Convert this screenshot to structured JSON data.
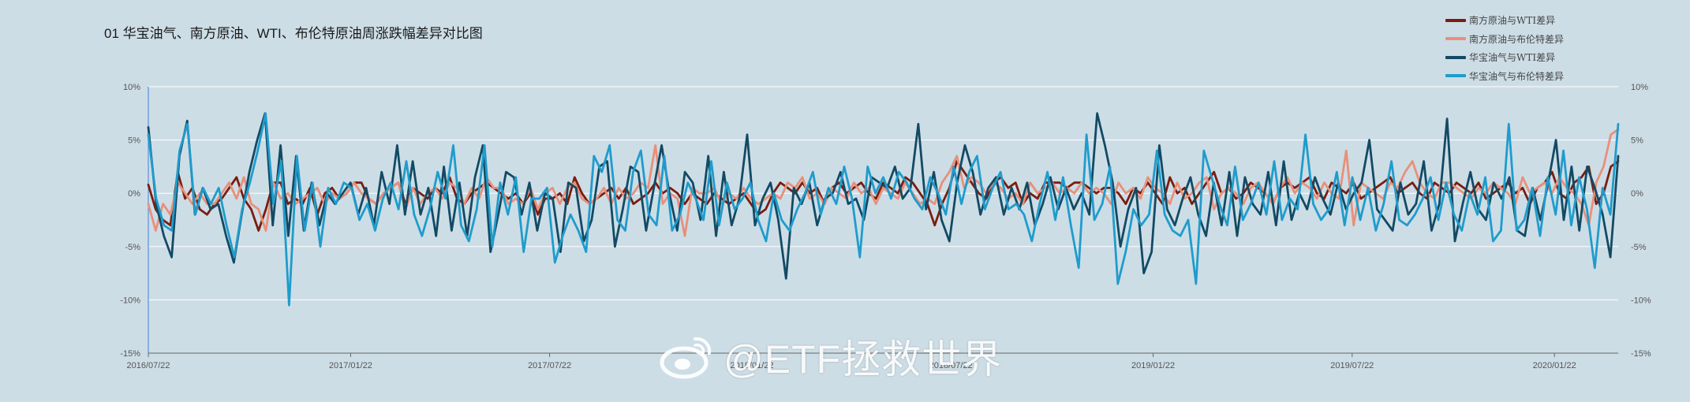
{
  "chart_data": {
    "type": "line",
    "title": "01 华宝油气、南方原油、WTI、布伦特原油周涨跌幅差异对比图",
    "x_start": "2016/07/22",
    "x_end": "2020/03/20",
    "x_ticks": [
      "2016/07/22",
      "2017/01/22",
      "2017/07/22",
      "2018/01/22",
      "2018/07/22",
      "2019/01/22",
      "2019/07/22",
      "2020/01/22"
    ],
    "ylim": [
      -15,
      10
    ],
    "y_ticks": [
      10,
      5,
      0,
      -5,
      -10,
      -15
    ],
    "y_tick_labels": [
      "10%",
      "5%",
      "0%",
      "-5%",
      "-10%",
      "-15%"
    ],
    "y_tick_labels_right": [
      "10%",
      "5%",
      "0%",
      "-5%",
      "-10%",
      "-15%"
    ],
    "grid": true,
    "legend_position": "top-right",
    "series": [
      {
        "name": "南方原油与WTI差异",
        "color": "#7a1d10",
        "x_start": "2016/07/22",
        "x_end": "2020/03/20",
        "values": [
          0.8,
          -1.5,
          -2.5,
          -3.0,
          2.0,
          -0.5,
          0.5,
          -1.5,
          -2.0,
          -1.0,
          -0.5,
          0.5,
          1.5,
          -0.5,
          -1.5,
          -3.5,
          -1.5,
          1.0,
          1.0,
          -1.0,
          -0.5,
          -1.0,
          0.5,
          -2.0,
          0.0,
          0.5,
          -0.5,
          0.0,
          1.0,
          1.0,
          -0.5,
          -1.0,
          0.0,
          0.5,
          1.0,
          -1.0,
          0.5,
          0.0,
          -0.5,
          0.5,
          0.0,
          1.5,
          -0.5,
          -1.0,
          0.0,
          0.5,
          1.0,
          0.5,
          0.0,
          -0.5,
          0.0,
          -1.0,
          0.0,
          -2.0,
          -0.5,
          -0.5,
          0.0,
          -1.0,
          1.5,
          0.0,
          -1.0,
          -0.5,
          0.0,
          0.5,
          -0.5,
          0.5,
          -1.0,
          -0.5,
          0.0,
          1.0,
          0.0,
          0.5,
          0.0,
          -1.0,
          0.0,
          -0.5,
          -1.0,
          0.0,
          -0.5,
          -1.0,
          -0.5,
          0.0,
          -1.0,
          -2.0,
          -1.5,
          0.0,
          1.0,
          0.5,
          0.0,
          1.0,
          0.0,
          0.5,
          -1.0,
          0.5,
          1.0,
          0.0,
          0.5,
          1.0,
          0.0,
          -0.5,
          1.0,
          0.5,
          0.0,
          1.5,
          1.0,
          0.0,
          -1.0,
          -3.0,
          -1.0,
          0.5,
          3.0,
          2.0,
          1.0,
          0.0,
          -0.5,
          1.0,
          1.5,
          0.5,
          1.0,
          -1.0,
          0.0,
          -0.5,
          1.0,
          1.0,
          1.0,
          0.5,
          1.0,
          1.0,
          0.5,
          0.0,
          0.5,
          0.5,
          0.0,
          -1.0,
          0.5,
          0.0,
          1.0,
          0.0,
          -1.0,
          1.5,
          0.0,
          0.5,
          -1.0,
          0.0,
          1.0,
          2.0,
          0.0,
          0.5,
          -0.5,
          0.0,
          1.0,
          0.5,
          0.0,
          -1.0,
          0.5,
          1.0,
          0.5,
          1.0,
          1.5,
          0.0,
          -0.5,
          1.0,
          0.5,
          0.0,
          1.0,
          -0.5,
          0.0,
          0.5,
          1.0,
          1.5,
          0.0,
          0.5,
          1.0,
          0.0,
          -0.5,
          1.0,
          0.5,
          0.0,
          1.0,
          0.5,
          0.0,
          1.0,
          -0.5,
          0.0,
          0.5,
          1.0,
          0.0,
          0.5,
          -1.0,
          0.5,
          1.0,
          2.0,
          0.0,
          -0.5,
          1.0,
          1.5,
          2.5,
          -1.0,
          0.0,
          2.5,
          3.0
        ]
      },
      {
        "name": "南方原油与布伦特差异",
        "color": "#e8907a",
        "x_start": "2016/07/22",
        "x_end": "2020/03/20",
        "values": [
          -1.0,
          -3.5,
          -1.0,
          -2.0,
          1.0,
          0.0,
          -1.0,
          0.0,
          -1.0,
          -1.0,
          0.0,
          1.0,
          -0.5,
          1.5,
          -1.0,
          -1.5,
          -3.5,
          1.0,
          -0.5,
          0.0,
          -1.0,
          -0.5,
          0.0,
          0.5,
          -1.0,
          0.0,
          -0.5,
          0.0,
          1.0,
          0.0,
          -0.5,
          -1.0,
          0.0,
          0.5,
          1.0,
          -1.5,
          0.5,
          -1.0,
          0.0,
          0.5,
          -0.5,
          1.0,
          0.5,
          -1.0,
          0.5,
          -0.5,
          1.5,
          0.5,
          0.5,
          -1.0,
          -0.5,
          -1.0,
          0.5,
          -1.5,
          0.0,
          0.5,
          -1.0,
          0.5,
          1.0,
          -0.5,
          -1.0,
          -0.5,
          0.5,
          -1.0,
          0.5,
          -0.5,
          0.0,
          1.0,
          0.5,
          4.5,
          -1.0,
          0.0,
          -0.5,
          -4.0,
          0.5,
          0.0,
          0.0,
          0.5,
          -1.0,
          0.0,
          -0.5,
          0.5,
          -0.5,
          -1.0,
          -0.5,
          0.0,
          -0.5,
          1.0,
          0.5,
          1.5,
          -0.5,
          0.0,
          -1.0,
          0.5,
          0.0,
          -0.5,
          1.0,
          0.0,
          0.5,
          -1.0,
          0.5,
          0.0,
          -0.5,
          1.0,
          0.0,
          -1.0,
          -0.5,
          -1.0,
          1.0,
          2.0,
          3.5,
          0.5,
          1.5,
          1.0,
          0.0,
          1.0,
          0.5,
          -0.5,
          0.0,
          -1.0,
          1.0,
          0.0,
          0.5,
          1.0,
          0.0,
          0.5,
          0.0,
          1.0,
          0.0,
          0.5,
          0.0,
          -1.0,
          1.0,
          0.0,
          0.5,
          -0.5,
          1.5,
          0.5,
          0.0,
          -1.0,
          1.0,
          -0.5,
          0.0,
          1.0,
          1.5,
          -1.5,
          0.0,
          0.5,
          0.0,
          -1.0,
          0.5,
          1.0,
          0.0,
          -1.0,
          0.5,
          1.5,
          0.0,
          1.0,
          0.5,
          -0.5,
          1.0,
          0.0,
          -0.5,
          4.0,
          -3.0,
          1.0,
          0.5,
          0.0,
          -0.5,
          1.0,
          0.5,
          2.0,
          3.0,
          1.0,
          0.0,
          -0.5,
          1.0,
          1.0,
          0.5,
          0.0,
          -0.5,
          0.5,
          0.0,
          1.0,
          0.5,
          0.0,
          -1.0,
          1.5,
          0.0,
          0.5,
          1.0,
          0.0,
          1.5,
          0.5,
          0.0,
          -1.0,
          -3.0,
          1.0,
          2.5,
          5.5,
          6.0
        ]
      },
      {
        "name": "华宝油气与WTI差异",
        "color": "#124a64",
        "x_start": "2016/07/22",
        "x_end": "2020/03/20",
        "values": [
          6.2,
          -1.0,
          -4.0,
          -6.0,
          3.5,
          6.8,
          -2.0,
          0.5,
          -1.5,
          -1.0,
          -4.0,
          -6.5,
          -2.0,
          2.0,
          5.0,
          7.5,
          -3.0,
          4.5,
          -4.0,
          3.5,
          -3.5,
          1.0,
          -3.0,
          0.0,
          -1.0,
          0.0,
          1.0,
          -2.0,
          0.5,
          -3.0,
          2.0,
          -1.0,
          4.5,
          -2.0,
          3.0,
          -2.0,
          0.5,
          -4.0,
          2.5,
          -3.5,
          1.0,
          -4.0,
          1.5,
          4.5,
          -5.5,
          -2.0,
          2.0,
          1.5,
          -2.0,
          1.0,
          -3.5,
          0.0,
          -0.5,
          -5.5,
          1.0,
          0.5,
          -4.5,
          -2.5,
          2.5,
          3.0,
          -5.0,
          -1.5,
          2.5,
          2.0,
          -3.5,
          0.5,
          4.5,
          0.0,
          -3.5,
          2.0,
          1.0,
          -2.5,
          3.5,
          -4.0,
          2.0,
          -3.0,
          -0.5,
          5.5,
          -3.0,
          -0.5,
          1.0,
          -2.5,
          -8.0,
          0.5,
          -1.0,
          1.0,
          -3.0,
          -0.5,
          0.0,
          2.0,
          -1.0,
          -0.5,
          -2.5,
          1.5,
          1.0,
          0.5,
          2.5,
          -0.5,
          0.5,
          6.5,
          -1.5,
          2.0,
          -2.5,
          -4.5,
          1.0,
          4.5,
          2.0,
          -2.0,
          0.5,
          1.5,
          -2.0,
          0.5,
          -1.5,
          1.0,
          -3.0,
          -1.0,
          1.5,
          -1.5,
          0.5,
          -1.5,
          0.0,
          -2.0,
          7.5,
          4.5,
          1.0,
          -5.0,
          -1.5,
          0.5,
          -7.5,
          -5.5,
          4.5,
          -1.5,
          -3.0,
          -0.5,
          1.5,
          -2.0,
          -4.0,
          1.0,
          -3.0,
          2.0,
          -4.0,
          1.5,
          -1.0,
          -2.0,
          2.0,
          -3.0,
          3.0,
          -2.5,
          0.0,
          -1.5,
          1.5,
          -0.5,
          -2.0,
          1.0,
          -1.5,
          0.0,
          1.0,
          5.0,
          -1.5,
          -2.5,
          -3.5,
          1.0,
          -2.0,
          -1.0,
          3.0,
          -3.5,
          -1.0,
          7.0,
          -4.5,
          -1.0,
          2.0,
          -1.5,
          -2.5,
          1.0,
          -0.5,
          1.5,
          -3.5,
          -4.0,
          0.5,
          -2.5,
          1.0,
          5.0,
          -2.5,
          2.5,
          -3.5,
          2.5,
          0.5,
          -2.0,
          -6.0,
          3.5
        ]
      },
      {
        "name": "华宝油气与布伦特差异",
        "color": "#1f9ccc",
        "x_start": "2016/07/22",
        "x_end": "2020/03/20",
        "values": [
          5.5,
          -0.5,
          -3.0,
          -3.5,
          4.0,
          6.5,
          -2.0,
          0.5,
          -1.0,
          0.5,
          -3.0,
          -6.0,
          -1.5,
          1.0,
          4.0,
          7.5,
          -1.0,
          3.0,
          -10.5,
          3.5,
          -3.5,
          1.0,
          -5.0,
          0.5,
          -1.0,
          1.0,
          0.5,
          -2.5,
          -1.0,
          -3.5,
          -0.5,
          1.0,
          -1.5,
          3.0,
          -2.0,
          -4.0,
          -1.5,
          2.0,
          -0.5,
          4.5,
          -3.0,
          -4.5,
          -1.5,
          4.5,
          -5.0,
          1.0,
          -2.0,
          1.5,
          -5.5,
          -0.5,
          -0.5,
          0.5,
          -6.5,
          -4.0,
          -2.0,
          -3.5,
          -5.5,
          3.5,
          2.0,
          4.5,
          -2.5,
          -3.5,
          2.0,
          4.0,
          -2.0,
          -3.0,
          3.5,
          -3.5,
          -2.0,
          1.0,
          -0.5,
          -2.5,
          3.0,
          -3.0,
          1.0,
          -1.5,
          -0.5,
          1.0,
          -2.5,
          -4.5,
          0.0,
          -2.5,
          -3.5,
          -1.5,
          0.0,
          2.0,
          -2.0,
          0.5,
          -1.0,
          2.5,
          -0.5,
          -6.0,
          2.5,
          0.0,
          1.5,
          -0.5,
          2.0,
          1.0,
          -0.5,
          -1.5,
          1.5,
          0.0,
          -2.0,
          2.5,
          -1.0,
          2.0,
          3.5,
          -1.5,
          0.5,
          2.0,
          -1.5,
          -1.0,
          -2.0,
          -4.5,
          -1.0,
          2.0,
          -2.5,
          1.5,
          -3.0,
          -7.0,
          5.5,
          -2.5,
          -1.0,
          2.5,
          -8.5,
          -5.5,
          -1.5,
          -3.0,
          -2.0,
          4.0,
          -2.0,
          -3.5,
          -4.0,
          -2.5,
          -8.5,
          4.0,
          1.5,
          -1.0,
          -3.0,
          2.5,
          -2.5,
          -1.0,
          1.0,
          -2.0,
          3.0,
          -2.5,
          -0.5,
          -1.5,
          5.5,
          -1.0,
          -2.5,
          -1.5,
          2.0,
          -3.0,
          1.5,
          -2.5,
          0.5,
          -3.5,
          -1.0,
          3.0,
          -2.5,
          -3.0,
          -2.0,
          -0.5,
          1.5,
          -2.5,
          1.0,
          -2.0,
          -3.5,
          0.0,
          -2.0,
          1.5,
          -4.5,
          -3.5,
          6.5,
          -3.5,
          -2.5,
          0.5,
          -4.0,
          1.5,
          -2.0,
          4.0,
          -3.0,
          1.5,
          -1.5,
          -7.0,
          0.5,
          -2.0,
          6.5
        ]
      }
    ]
  },
  "watermark": {
    "text": "@ETF拯救世界"
  }
}
